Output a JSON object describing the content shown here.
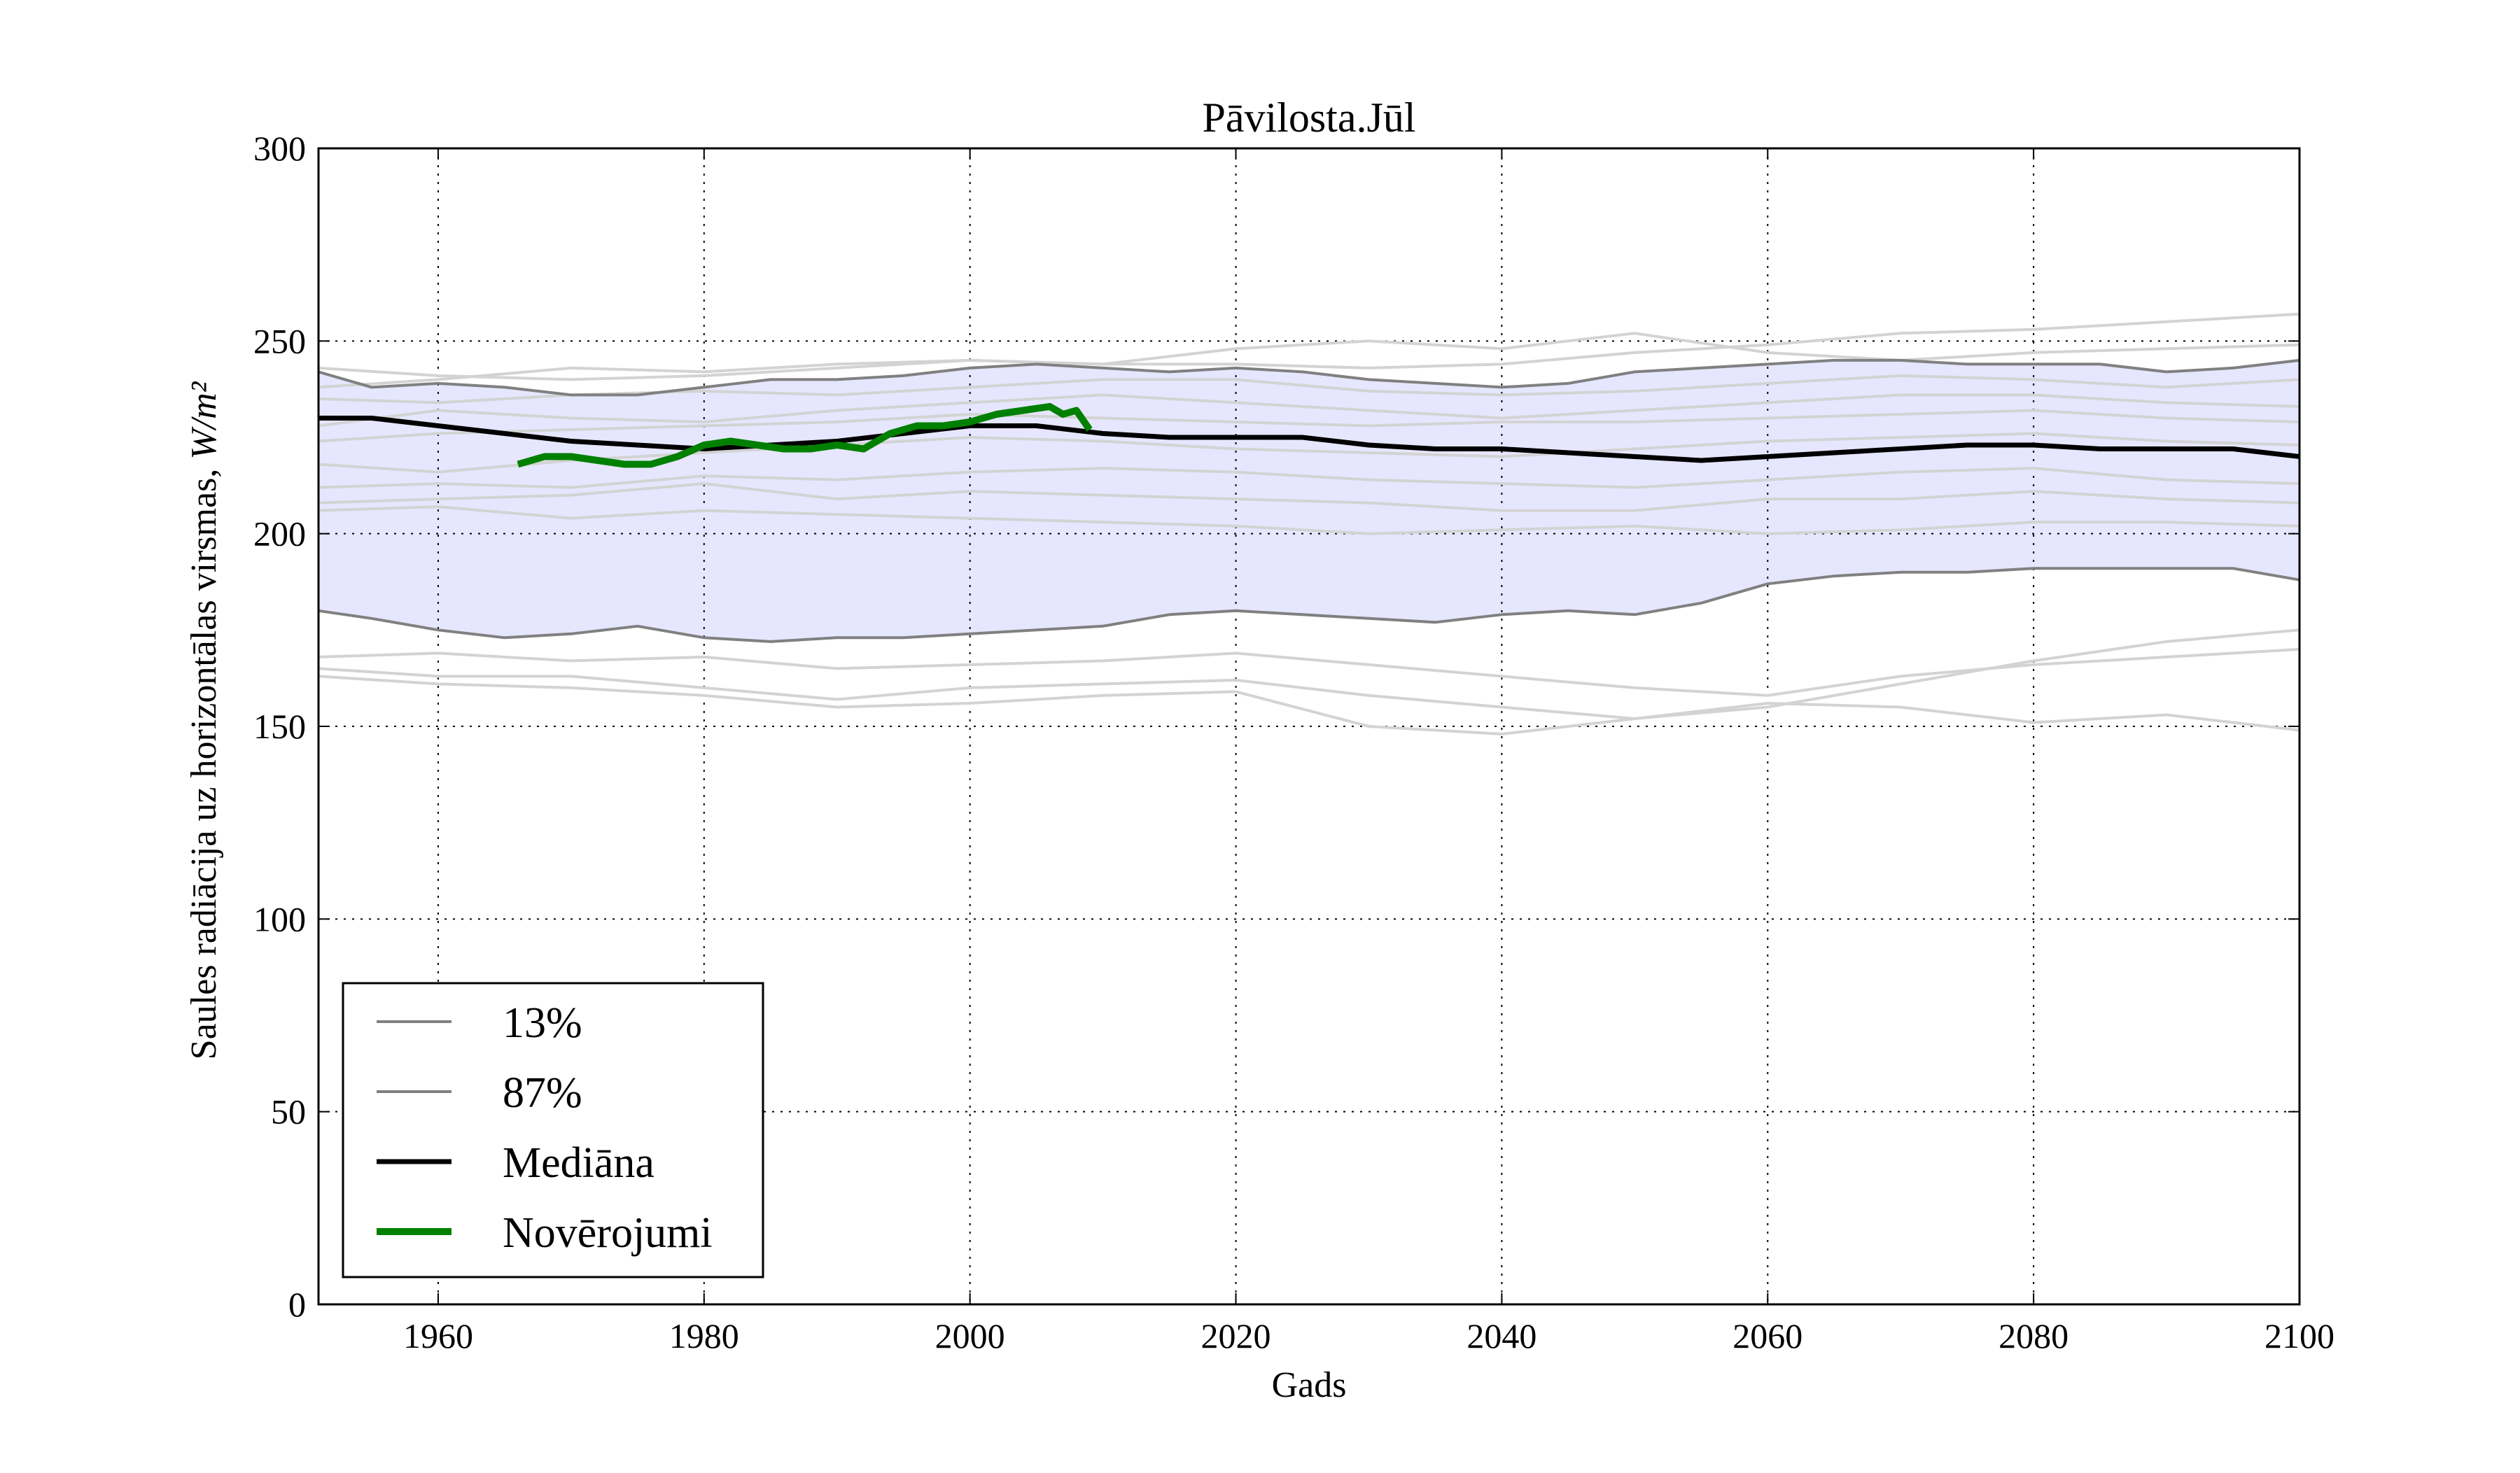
{
  "chart_data": {
    "type": "line",
    "title": "Pāvilosta.Jūl",
    "xlabel": "Gads",
    "ylabel": "Saules radiācija uz horizontālas virsmas, ",
    "ylabel_math": "W/m²",
    "xlim": [
      1951,
      2100
    ],
    "ylim": [
      0,
      300
    ],
    "x_ticks": [
      1960,
      1980,
      2000,
      2020,
      2040,
      2060,
      2080,
      2100
    ],
    "y_ticks": [
      0,
      50,
      100,
      150,
      200,
      250,
      300
    ],
    "grid": true,
    "legend_placement": "lower-left",
    "colors": {
      "band": "#e6e6ff",
      "percentile": "#808080",
      "ensemble": "#d3d3d3",
      "median": "#000000",
      "observations": "#008000"
    },
    "band": {
      "name": "13%–87%",
      "x": [
        1951,
        1955,
        1960,
        1965,
        1970,
        1975,
        1980,
        1985,
        1990,
        1995,
        2000,
        2005,
        2010,
        2015,
        2020,
        2025,
        2030,
        2035,
        2040,
        2045,
        2050,
        2055,
        2060,
        2065,
        2070,
        2075,
        2080,
        2085,
        2090,
        2095,
        2100
      ],
      "lower": [
        180,
        178,
        175,
        173,
        174,
        176,
        173,
        172,
        173,
        173,
        174,
        175,
        176,
        179,
        180,
        179,
        178,
        177,
        179,
        180,
        179,
        182,
        187,
        189,
        190,
        190,
        191,
        191,
        191,
        191,
        188
      ],
      "upper": [
        242,
        238,
        239,
        238,
        236,
        236,
        238,
        240,
        240,
        241,
        243,
        244,
        243,
        242,
        243,
        242,
        240,
        239,
        238,
        239,
        242,
        243,
        244,
        245,
        245,
        244,
        244,
        244,
        242,
        243,
        245
      ]
    },
    "series": [
      {
        "name": "13%",
        "x": [
          1951,
          1955,
          1960,
          1965,
          1970,
          1975,
          1980,
          1985,
          1990,
          1995,
          2000,
          2005,
          2010,
          2015,
          2020,
          2025,
          2030,
          2035,
          2040,
          2045,
          2050,
          2055,
          2060,
          2065,
          2070,
          2075,
          2080,
          2085,
          2090,
          2095,
          2100
        ],
        "values": [
          180,
          178,
          175,
          173,
          174,
          176,
          173,
          172,
          173,
          173,
          174,
          175,
          176,
          179,
          180,
          179,
          178,
          177,
          179,
          180,
          179,
          182,
          187,
          189,
          190,
          190,
          191,
          191,
          191,
          191,
          188
        ]
      },
      {
        "name": "87%",
        "x": [
          1951,
          1955,
          1960,
          1965,
          1970,
          1975,
          1980,
          1985,
          1990,
          1995,
          2000,
          2005,
          2010,
          2015,
          2020,
          2025,
          2030,
          2035,
          2040,
          2045,
          2050,
          2055,
          2060,
          2065,
          2070,
          2075,
          2080,
          2085,
          2090,
          2095,
          2100
        ],
        "values": [
          242,
          238,
          239,
          238,
          236,
          236,
          238,
          240,
          240,
          241,
          243,
          244,
          243,
          242,
          243,
          242,
          240,
          239,
          238,
          239,
          242,
          243,
          244,
          245,
          245,
          244,
          244,
          244,
          242,
          243,
          245
        ]
      },
      {
        "name": "Mediāna",
        "x": [
          1951,
          1955,
          1960,
          1965,
          1970,
          1975,
          1980,
          1985,
          1990,
          1995,
          2000,
          2005,
          2010,
          2015,
          2020,
          2025,
          2030,
          2035,
          2040,
          2045,
          2050,
          2055,
          2060,
          2065,
          2070,
          2075,
          2080,
          2085,
          2090,
          2095,
          2100
        ],
        "values": [
          230,
          230,
          228,
          226,
          224,
          223,
          222,
          223,
          224,
          226,
          228,
          228,
          226,
          225,
          225,
          225,
          223,
          222,
          222,
          221,
          220,
          219,
          220,
          221,
          222,
          223,
          223,
          222,
          222,
          222,
          220
        ]
      },
      {
        "name": "Novērojumi",
        "x": [
          1966,
          1968,
          1970,
          1972,
          1974,
          1976,
          1978,
          1980,
          1982,
          1984,
          1986,
          1988,
          1990,
          1992,
          1994,
          1996,
          1998,
          2000,
          2002,
          2004,
          2006,
          2007,
          2008,
          2009
        ],
        "values": [
          218,
          220,
          220,
          219,
          218,
          218,
          220,
          223,
          224,
          223,
          222,
          222,
          223,
          222,
          226,
          228,
          228,
          229,
          231,
          232,
          233,
          231,
          232,
          227
        ]
      }
    ],
    "ensemble": [
      {
        "x": [
          1951,
          1960,
          1970,
          1980,
          1990,
          2000,
          2010,
          2020,
          2030,
          2040,
          2050,
          2060,
          2070,
          2080,
          2090,
          2100
        ],
        "values": [
          243,
          241,
          240,
          241,
          243,
          245,
          244,
          244,
          243,
          244,
          247,
          249,
          252,
          253,
          255,
          257
        ]
      },
      {
        "x": [
          1951,
          1960,
          1970,
          1980,
          1990,
          2000,
          2010,
          2020,
          2030,
          2040,
          2050,
          2060,
          2070,
          2080,
          2090,
          2100
        ],
        "values": [
          238,
          240,
          243,
          242,
          244,
          245,
          244,
          248,
          250,
          248,
          252,
          247,
          245,
          247,
          248,
          249
        ]
      },
      {
        "x": [
          1951,
          1960,
          1970,
          1980,
          1990,
          2000,
          2010,
          2020,
          2030,
          2040,
          2050,
          2060,
          2070,
          2080,
          2090,
          2100
        ],
        "values": [
          235,
          234,
          236,
          237,
          236,
          238,
          240,
          240,
          237,
          236,
          237,
          239,
          241,
          240,
          238,
          240
        ]
      },
      {
        "x": [
          1951,
          1960,
          1970,
          1980,
          1990,
          2000,
          2010,
          2020,
          2030,
          2040,
          2050,
          2060,
          2070,
          2080,
          2090,
          2100
        ],
        "values": [
          228,
          232,
          230,
          229,
          232,
          234,
          236,
          234,
          232,
          230,
          232,
          234,
          236,
          236,
          234,
          233
        ]
      },
      {
        "x": [
          1951,
          1960,
          1970,
          1980,
          1990,
          2000,
          2010,
          2020,
          2030,
          2040,
          2050,
          2060,
          2070,
          2080,
          2090,
          2100
        ],
        "values": [
          224,
          226,
          227,
          228,
          229,
          231,
          230,
          229,
          228,
          229,
          229,
          230,
          231,
          232,
          230,
          229
        ]
      },
      {
        "x": [
          1951,
          1960,
          1970,
          1980,
          1990,
          2000,
          2010,
          2020,
          2030,
          2040,
          2050,
          2060,
          2070,
          2080,
          2090,
          2100
        ],
        "values": [
          218,
          216,
          219,
          221,
          223,
          225,
          224,
          222,
          221,
          220,
          222,
          224,
          225,
          226,
          224,
          223
        ]
      },
      {
        "x": [
          1951,
          1960,
          1970,
          1980,
          1990,
          2000,
          2010,
          2020,
          2030,
          2040,
          2050,
          2060,
          2070,
          2080,
          2090,
          2100
        ],
        "values": [
          212,
          213,
          212,
          215,
          214,
          216,
          217,
          216,
          214,
          213,
          212,
          214,
          216,
          217,
          214,
          213
        ]
      },
      {
        "x": [
          1951,
          1960,
          1970,
          1980,
          1990,
          2000,
          2010,
          2020,
          2030,
          2040,
          2050,
          2060,
          2070,
          2080,
          2090,
          2100
        ],
        "values": [
          208,
          209,
          210,
          213,
          209,
          211,
          210,
          209,
          208,
          206,
          206,
          209,
          209,
          211,
          209,
          208
        ]
      },
      {
        "x": [
          1951,
          1960,
          1970,
          1980,
          1990,
          2000,
          2010,
          2020,
          2030,
          2040,
          2050,
          2060,
          2070,
          2080,
          2090,
          2100
        ],
        "values": [
          206,
          207,
          204,
          206,
          205,
          204,
          203,
          202,
          200,
          201,
          202,
          200,
          201,
          203,
          203,
          202
        ]
      },
      {
        "x": [
          1951,
          1960,
          1970,
          1980,
          1990,
          2000,
          2010,
          2020,
          2030,
          2040,
          2050,
          2060,
          2070,
          2080,
          2090,
          2100
        ],
        "values": [
          168,
          169,
          167,
          168,
          165,
          166,
          167,
          169,
          166,
          163,
          160,
          158,
          163,
          166,
          168,
          170
        ]
      },
      {
        "x": [
          1951,
          1960,
          1970,
          1980,
          1990,
          2000,
          2010,
          2020,
          2030,
          2040,
          2050,
          2060,
          2070,
          2080,
          2090,
          2100
        ],
        "values": [
          165,
          163,
          163,
          160,
          157,
          160,
          161,
          162,
          158,
          155,
          152,
          155,
          161,
          167,
          172,
          175
        ]
      },
      {
        "x": [
          1951,
          1960,
          1970,
          1980,
          1990,
          2000,
          2010,
          2020,
          2030,
          2040,
          2050,
          2060,
          2070,
          2080,
          2090,
          2100
        ],
        "values": [
          163,
          161,
          160,
          158,
          155,
          156,
          158,
          159,
          150,
          148,
          152,
          156,
          155,
          151,
          153,
          149
        ]
      }
    ]
  }
}
